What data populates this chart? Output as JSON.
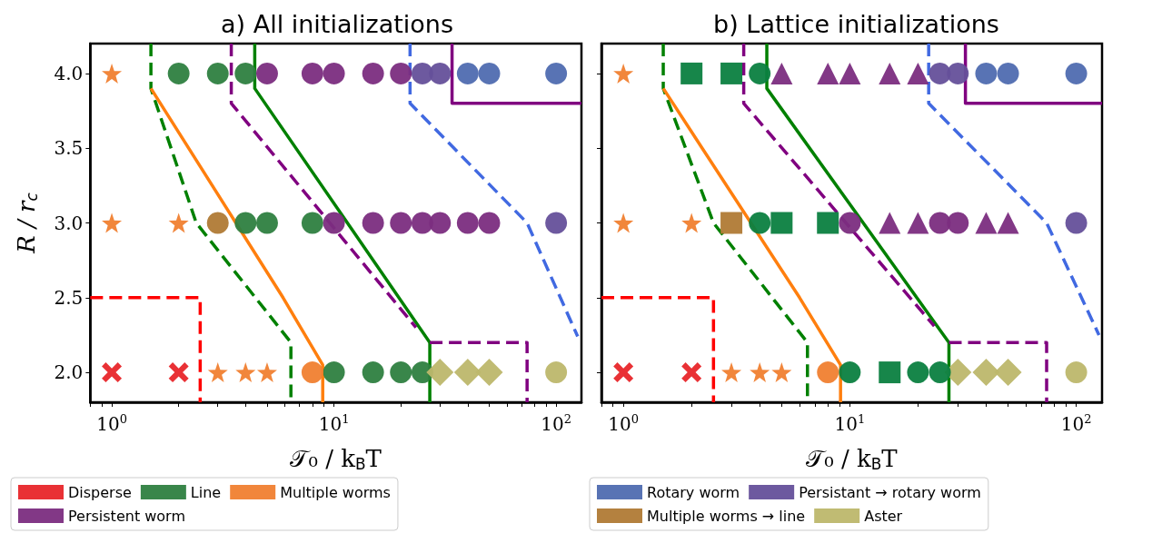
{
  "chart_data": [
    {
      "type": "scatter",
      "title": "a) All initializations",
      "xlabel": "𝒯₀ / k$_{B}$T",
      "ylabel": "R / r$_{c}$",
      "log": "x",
      "legend": "bottom",
      "xlim": [
        0.8,
        130
      ],
      "ylim": [
        1.8,
        4.2
      ],
      "xticks": [
        {
          "value": 0.8,
          "label": null
        },
        {
          "value": 0.9,
          "label": null
        },
        {
          "value": 1,
          "label": "10$^{0}$"
        },
        {
          "value": 2,
          "label": null
        },
        {
          "value": 3,
          "label": null
        },
        {
          "value": 4,
          "label": null
        },
        {
          "value": 5,
          "label": null
        },
        {
          "value": 6,
          "label": null
        },
        {
          "value": 7,
          "label": null
        },
        {
          "value": 8,
          "label": null
        },
        {
          "value": 9,
          "label": null
        },
        {
          "value": 10,
          "label": "10$^{1}$"
        },
        {
          "value": 20,
          "label": null
        },
        {
          "value": 30,
          "label": null
        },
        {
          "value": 40,
          "label": null
        },
        {
          "value": 50,
          "label": null
        },
        {
          "value": 60,
          "label": null
        },
        {
          "value": 70,
          "label": null
        },
        {
          "value": 80,
          "label": null
        },
        {
          "value": 90,
          "label": null
        },
        {
          "value": 100,
          "label": "10$^{2}$"
        }
      ],
      "yticks": [
        {
          "value": 2,
          "label": "2.0"
        },
        {
          "value": 2.5,
          "label": "2.5"
        },
        {
          "value": 3,
          "label": "3.0"
        },
        {
          "value": 3.5,
          "label": "3.5"
        },
        {
          "value": 4,
          "label": "4.0"
        }
      ],
      "series": [
        {
          "name": "Disperse",
          "marker": "cross",
          "color": "#e8262a",
          "x": [
            1,
            2
          ],
          "values": [
            2,
            2
          ]
        },
        {
          "name": "Line",
          "marker": "circle",
          "color": "#2e8040",
          "x": [
            2,
            3,
            4,
            4,
            5,
            8,
            10,
            15,
            20,
            25
          ],
          "values": [
            4,
            4,
            4,
            3,
            3,
            3,
            2,
            2,
            2,
            2
          ]
        },
        {
          "name": "Multiple worms",
          "marker": "star",
          "color": "#f08030",
          "x": [
            1,
            1,
            2,
            3,
            4,
            5
          ],
          "values": [
            4,
            3,
            3,
            2,
            2,
            2
          ]
        },
        {
          "name": "Persistent worm",
          "marker": "circle",
          "color": "#7b2d7f",
          "x": [
            5,
            8,
            10,
            15,
            20,
            10,
            15,
            20,
            25,
            30,
            40,
            50
          ],
          "values": [
            4,
            4,
            4,
            4,
            4,
            3,
            3,
            3,
            3,
            3,
            3,
            3
          ]
        },
        {
          "marker": "circle",
          "color": "#4f6bb0",
          "x": [
            40,
            50,
            100
          ],
          "values": [
            4,
            4,
            4
          ]
        },
        {
          "marker": "circle",
          "color": "#65509a",
          "x": [
            25,
            30,
            100
          ],
          "values": [
            4,
            4,
            3
          ]
        },
        {
          "marker": "circle",
          "color": "#b07a35",
          "x": [
            3
          ],
          "values": [
            3
          ]
        },
        {
          "marker": "diamond",
          "color": "#bdb76b",
          "x": [
            30,
            40,
            50
          ],
          "values": [
            2,
            2,
            2
          ]
        },
        {
          "marker": "circle",
          "color": "#f08030",
          "x": [
            8
          ],
          "values": [
            2
          ]
        },
        {
          "marker": "circle",
          "color": "#bdb76b",
          "x": [
            100
          ],
          "values": [
            2
          ]
        },
        {
          "type": "line",
          "marker": "none",
          "line_style": "dashed",
          "color": "#ff0000",
          "x": [
            0.8,
            2.5,
            2.5
          ],
          "values": [
            2.5,
            2.5,
            1.8
          ]
        },
        {
          "type": "line",
          "marker": "none",
          "line_style": "dashed",
          "color": "#008000",
          "x": [
            1.5,
            1.5,
            2.4,
            6.4,
            6.4
          ],
          "values": [
            4.2,
            3.9,
            3,
            2.2,
            1.8
          ]
        },
        {
          "type": "line",
          "marker": "none",
          "line_style": "solid",
          "color": "#ff7f0e",
          "x": [
            1.5,
            5.9,
            8.9,
            8.9
          ],
          "values": [
            3.9,
            2.5,
            2.05,
            1.8
          ]
        },
        {
          "type": "line",
          "marker": "none",
          "line_style": "solid",
          "color": "#008000",
          "x": [
            4.4,
            4.4,
            27,
            27
          ],
          "values": [
            4.2,
            3.9,
            2.2,
            1.8
          ]
        },
        {
          "type": "line",
          "marker": "none",
          "line_style": "dashed",
          "color": "#800080",
          "x": [
            3.45,
            3.45,
            23.4
          ],
          "values": [
            4.2,
            3.8,
            2.3
          ]
        },
        {
          "type": "line",
          "marker": "none",
          "line_style": "dashed",
          "color": "#800080",
          "x": [
            27,
            74,
            74
          ],
          "values": [
            2.2,
            2.2,
            1.8
          ]
        },
        {
          "type": "line",
          "marker": "none",
          "line_style": "dashed",
          "color": "#4169e1",
          "x": [
            22,
            22,
            74,
            125
          ],
          "values": [
            4.2,
            3.8,
            3,
            2.24
          ]
        },
        {
          "type": "line",
          "marker": "none",
          "line_style": "solid",
          "color": "#800080",
          "x": [
            34,
            34,
            130
          ],
          "values": [
            4.2,
            3.8,
            3.8
          ]
        }
      ]
    },
    {
      "type": "scatter",
      "title": "b) Lattice initializations",
      "xlabel": "𝒯₀ / k$_{B}$T",
      "log": "x",
      "tick_labels": "x",
      "legend": "bottom",
      "xlim": [
        0.8,
        130
      ],
      "ylim": [
        1.8,
        4.2
      ],
      "xticks": [
        {
          "value": 0.8,
          "label": null
        },
        {
          "value": 0.9,
          "label": null
        },
        {
          "value": 1,
          "label": "10$^{0}$"
        },
        {
          "value": 2,
          "label": null
        },
        {
          "value": 3,
          "label": null
        },
        {
          "value": 4,
          "label": null
        },
        {
          "value": 5,
          "label": null
        },
        {
          "value": 6,
          "label": null
        },
        {
          "value": 7,
          "label": null
        },
        {
          "value": 8,
          "label": null
        },
        {
          "value": 9,
          "label": null
        },
        {
          "value": 10,
          "label": "10$^{1}$"
        },
        {
          "value": 20,
          "label": null
        },
        {
          "value": 30,
          "label": null
        },
        {
          "value": 40,
          "label": null
        },
        {
          "value": 50,
          "label": null
        },
        {
          "value": 60,
          "label": null
        },
        {
          "value": 70,
          "label": null
        },
        {
          "value": 80,
          "label": null
        },
        {
          "value": 90,
          "label": null
        },
        {
          "value": 100,
          "label": "10$^{2}$"
        }
      ],
      "yticks": [
        {
          "value": 2,
          "label": null
        },
        {
          "value": 2.5,
          "label": null
        },
        {
          "value": 3,
          "label": null
        },
        {
          "value": 3.5,
          "label": null
        },
        {
          "value": 4,
          "label": null
        }
      ],
      "series": [
        {
          "name": "Rotary worm",
          "marker": "circle",
          "color": "#4f6bb0",
          "x": [
            40,
            50,
            100
          ],
          "values": [
            4,
            4,
            4
          ]
        },
        {
          "name": "Persistant → rotary worm",
          "marker": "circle",
          "color": "#65509a",
          "x": [
            25,
            30
          ],
          "values": [
            4,
            4
          ]
        },
        {
          "name": "Multiple worms → line",
          "marker": "square",
          "color": "#b07a35",
          "x": [
            3
          ],
          "values": [
            3
          ]
        },
        {
          "name": "Aster",
          "marker": "diamond",
          "color": "#bdb76b",
          "x": [
            30,
            40,
            50
          ],
          "values": [
            2,
            2,
            2
          ]
        },
        {
          "marker": "cross",
          "color": "#e8262a",
          "x": [
            1,
            2
          ],
          "values": [
            2,
            2
          ]
        },
        {
          "marker": "square",
          "color": "#0b8040",
          "x": [
            2,
            3,
            5,
            8,
            15
          ],
          "values": [
            4,
            4,
            3,
            3,
            2
          ]
        },
        {
          "marker": "star",
          "color": "#f08030",
          "x": [
            1,
            1,
            2,
            3,
            4,
            5
          ],
          "values": [
            4,
            3,
            3,
            2,
            2,
            2
          ]
        },
        {
          "marker": "triangle",
          "color": "#7b2d7f",
          "x": [
            5,
            8,
            10,
            15,
            20,
            15,
            20,
            40,
            50
          ],
          "values": [
            4,
            4,
            4,
            4,
            4,
            3,
            3,
            3,
            3
          ]
        },
        {
          "marker": "circle",
          "color": "#0b8040",
          "x": [
            4,
            4,
            10,
            20,
            25
          ],
          "values": [
            4,
            3,
            2,
            2,
            2
          ]
        },
        {
          "marker": "circle",
          "color": "#7b2d7f",
          "x": [
            10,
            25,
            30
          ],
          "values": [
            3,
            3,
            3
          ]
        },
        {
          "marker": "circle",
          "color": "#65509a",
          "x": [
            100
          ],
          "values": [
            3
          ]
        },
        {
          "marker": "circle",
          "color": "#f08030",
          "x": [
            8
          ],
          "values": [
            2
          ]
        },
        {
          "marker": "circle",
          "color": "#bdb76b",
          "x": [
            100
          ],
          "values": [
            2
          ]
        },
        {
          "type": "line",
          "marker": "none",
          "line_style": "dashed",
          "color": "#ff0000",
          "x": [
            0.8,
            2.5,
            2.5
          ],
          "values": [
            2.5,
            2.5,
            1.8
          ]
        },
        {
          "type": "line",
          "marker": "none",
          "line_style": "dashed",
          "color": "#008000",
          "x": [
            1.5,
            1.5,
            2.5,
            6.5,
            6.5
          ],
          "values": [
            4.2,
            3.9,
            3,
            2.2,
            1.8
          ]
        },
        {
          "type": "line",
          "marker": "none",
          "line_style": "solid",
          "color": "#ff7f0e",
          "x": [
            1.5,
            6,
            9.1,
            9.1
          ],
          "values": [
            3.9,
            2.5,
            2.05,
            1.8
          ]
        },
        {
          "type": "line",
          "marker": "none",
          "line_style": "solid",
          "color": "#008000",
          "x": [
            4.3,
            4.3,
            27.4,
            27.4
          ],
          "values": [
            4.2,
            3.9,
            2.2,
            1.8
          ]
        },
        {
          "type": "line",
          "marker": "none",
          "line_style": "dashed",
          "color": "#800080",
          "x": [
            3.4,
            3.4,
            23.6
          ],
          "values": [
            4.2,
            3.8,
            2.31
          ]
        },
        {
          "type": "line",
          "marker": "none",
          "line_style": "dashed",
          "color": "#800080",
          "x": [
            27.4,
            74,
            74
          ],
          "values": [
            2.2,
            2.2,
            1.8
          ]
        },
        {
          "type": "line",
          "marker": "none",
          "line_style": "dashed",
          "color": "#4169e1",
          "x": [
            22.3,
            22.3,
            74,
            126
          ],
          "values": [
            4.2,
            3.8,
            3,
            2.25
          ]
        },
        {
          "type": "line",
          "marker": "none",
          "line_style": "solid",
          "color": "#800080",
          "x": [
            32.4,
            32.4,
            130
          ],
          "values": [
            4.2,
            3.8,
            3.8
          ]
        }
      ]
    }
  ]
}
